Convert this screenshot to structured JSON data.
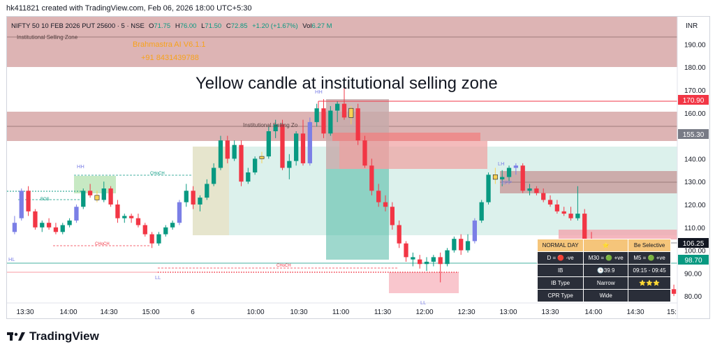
{
  "header": {
    "caption": "hk411821 created with TradingView.com, Feb 06, 2026 18:00 UTC+5:30"
  },
  "symbol_bar": {
    "symbol": "NIFTY 50 10 FEB 2026 PUT 25600 · 5 · NSE",
    "o_label": "O",
    "o_value": "71.75",
    "h_label": "H",
    "h_value": "76.00",
    "l_label": "L",
    "l_value": "71.50",
    "c_label": "C",
    "c_value": "72.85",
    "change": "+1.20 (+1.67%)",
    "vol_label": "Vol",
    "vol_value": "6.27 M",
    "currency": "INR"
  },
  "overlay": {
    "zone_label_top": "Institutional Selling Zone",
    "zone_label_mid": "Institutional Selling Zo",
    "brand": "Brahmastra AI V6.1.1",
    "phone": "+91 8431439788",
    "annotation": "Yellow candle at institutional selling zone",
    "labels": {
      "hh1": "HH",
      "hh2": "HH",
      "hl": "HL",
      "ll": "LL",
      "lh": "LH",
      "ll2": "LL",
      "bos": "BOS",
      "choch1": "CHoCH",
      "choch2": "CHoCH",
      "choch3": "CHoCH",
      "epp": "EPP"
    }
  },
  "price_badges": {
    "p1": {
      "text": "170.90",
      "color": "#f23645"
    },
    "p2": {
      "text": "155.30",
      "color": "#787b86"
    },
    "p3": {
      "text": "106.25",
      "color": "#131722"
    },
    "p4": {
      "text": "98.70",
      "color": "#089981"
    }
  },
  "dashboard": {
    "row1": {
      "a": "NORMAL DAY",
      "b": "⭐",
      "c": "Be Selective"
    },
    "row2": {
      "a": "D = 🔴 -ve",
      "b": "M30 = 🟢 +ve",
      "c": "M5 = 🟢 +ve"
    },
    "row3": {
      "a": "IB",
      "b": "🕓39.9",
      "c": "09:15 - 09:45"
    },
    "row4": {
      "a": "IB Type",
      "b": "Narrow",
      "c": "⭐⭐⭐"
    },
    "row5": {
      "a": "CPR Type",
      "b": "Wide",
      "c": ""
    }
  },
  "footer": {
    "brand": "TradingView"
  },
  "colors": {
    "up": "#089981",
    "down": "#f23645",
    "yellow": "#f7d154",
    "blue": "#7b7fe6",
    "zone": "#d7a7a7"
  },
  "chart_data": {
    "type": "candlestick",
    "x_ticks": [
      "13:30",
      "14:00",
      "14:30",
      "15:00",
      "6",
      "10:00",
      "10:30",
      "11:00",
      "11:30",
      "12:00",
      "12:30",
      "13:00",
      "13:30",
      "14:00",
      "14:30",
      "15:"
    ],
    "y_ticks": [
      80,
      90,
      100,
      110,
      120,
      130,
      140,
      150,
      160,
      170,
      180,
      190
    ],
    "ylim": [
      77,
      202
    ],
    "candles": [
      [
        112,
        115,
        107,
        108,
        "b"
      ],
      [
        114,
        127,
        113,
        126,
        "b"
      ],
      [
        126,
        128,
        115,
        117,
        "d"
      ],
      [
        117,
        118,
        109,
        110,
        "d"
      ],
      [
        110,
        113,
        108,
        112,
        "u"
      ],
      [
        112,
        114,
        109,
        110,
        "d"
      ],
      [
        110,
        112,
        107,
        108,
        "d"
      ],
      [
        108,
        112,
        107,
        111,
        "u"
      ],
      [
        111,
        114,
        110,
        113,
        "u"
      ],
      [
        113,
        120,
        112,
        119,
        "b"
      ],
      [
        119,
        127,
        118,
        126,
        "u"
      ],
      [
        126,
        129,
        123,
        124,
        "d"
      ],
      [
        124,
        126,
        121,
        122,
        "y"
      ],
      [
        122,
        130,
        121,
        127,
        "u"
      ],
      [
        127,
        128,
        119,
        120,
        "d"
      ],
      [
        120,
        122,
        112,
        114,
        "d"
      ],
      [
        114,
        116,
        112,
        115,
        "u"
      ],
      [
        115,
        116,
        112,
        114,
        "d"
      ],
      [
        114,
        116,
        110,
        111,
        "d"
      ],
      [
        111,
        112,
        106,
        107,
        "d"
      ],
      [
        107,
        108,
        101,
        103,
        "d"
      ],
      [
        103,
        108,
        102,
        107,
        "u"
      ],
      [
        107,
        111,
        106,
        110,
        "u"
      ],
      [
        110,
        113,
        109,
        112,
        "u"
      ],
      [
        112,
        122,
        111,
        121,
        "b"
      ],
      [
        121,
        129,
        119,
        126,
        "u"
      ],
      [
        126,
        128,
        118,
        120,
        "d"
      ],
      [
        120,
        124,
        117,
        123,
        "u"
      ],
      [
        123,
        131,
        122,
        129,
        "u"
      ],
      [
        129,
        138,
        128,
        136,
        "u"
      ],
      [
        136,
        150,
        135,
        148,
        "u"
      ],
      [
        148,
        150,
        138,
        140,
        "d"
      ],
      [
        140,
        148,
        139,
        146,
        "u"
      ],
      [
        146,
        148,
        128,
        130,
        "d"
      ],
      [
        130,
        136,
        129,
        134,
        "u"
      ],
      [
        134,
        141,
        133,
        140,
        "u"
      ],
      [
        140,
        143,
        138,
        141,
        "y"
      ],
      [
        141,
        154,
        140,
        152,
        "u"
      ],
      [
        152,
        157,
        149,
        155,
        "u"
      ],
      [
        155,
        157,
        135,
        136,
        "d"
      ],
      [
        136,
        142,
        131,
        139,
        "u"
      ],
      [
        139,
        152,
        137,
        151,
        "u"
      ],
      [
        151,
        157,
        137,
        138,
        "d"
      ],
      [
        138,
        158,
        137,
        156,
        "b"
      ],
      [
        156,
        164,
        154,
        162,
        "u"
      ],
      [
        162,
        166,
        149,
        151,
        "d"
      ],
      [
        151,
        163,
        150,
        161,
        "u"
      ],
      [
        161,
        165,
        156,
        164,
        "u"
      ],
      [
        164,
        172,
        157,
        158,
        "d"
      ],
      [
        158,
        163,
        155,
        162,
        "y"
      ],
      [
        162,
        164,
        146,
        148,
        "d"
      ],
      [
        148,
        150,
        136,
        137,
        "d"
      ],
      [
        137,
        140,
        124,
        126,
        "d"
      ],
      [
        126,
        129,
        119,
        121,
        "d"
      ],
      [
        121,
        124,
        117,
        119,
        "d"
      ],
      [
        119,
        121,
        109,
        111,
        "d"
      ],
      [
        111,
        113,
        101,
        103,
        "d"
      ],
      [
        103,
        104,
        95,
        97,
        "d"
      ],
      [
        97,
        99,
        93,
        96,
        "u"
      ],
      [
        96,
        98,
        92,
        94,
        "d"
      ],
      [
        94,
        97,
        91,
        95,
        "u"
      ],
      [
        95,
        98,
        93,
        97,
        "u"
      ],
      [
        97,
        99,
        86,
        94,
        "d"
      ],
      [
        94,
        101,
        93,
        100,
        "u"
      ],
      [
        100,
        106,
        99,
        105,
        "u"
      ],
      [
        105,
        107,
        98,
        100,
        "d"
      ],
      [
        100,
        107,
        99,
        104,
        "u"
      ],
      [
        104,
        114,
        103,
        113,
        "b"
      ],
      [
        113,
        122,
        112,
        121,
        "u"
      ],
      [
        121,
        134,
        120,
        133,
        "u"
      ],
      [
        133,
        136,
        129,
        131,
        "y"
      ],
      [
        131,
        135,
        128,
        132,
        "u"
      ],
      [
        132,
        137,
        130,
        136,
        "u"
      ],
      [
        136,
        138,
        133,
        137,
        "b"
      ],
      [
        137,
        138,
        125,
        126,
        "d"
      ],
      [
        126,
        129,
        124,
        127,
        "u"
      ],
      [
        127,
        128,
        124,
        125,
        "d"
      ],
      [
        125,
        127,
        121,
        122,
        "d"
      ],
      [
        122,
        124,
        119,
        120,
        "d"
      ],
      [
        120,
        122,
        116,
        117,
        "d"
      ],
      [
        117,
        119,
        115,
        116,
        "d"
      ],
      [
        116,
        119,
        113,
        114,
        "d"
      ],
      [
        114,
        128,
        113,
        116,
        "u"
      ],
      [
        116,
        118,
        103,
        105,
        "d"
      ],
      [
        105,
        108,
        101,
        102,
        "d"
      ],
      [
        102,
        104,
        89,
        91,
        "d"
      ],
      [
        91,
        93,
        88,
        90,
        "d"
      ],
      [
        90,
        95,
        89,
        94,
        "u"
      ],
      [
        94,
        96,
        90,
        92,
        "d"
      ],
      [
        92,
        94,
        88,
        90,
        "d"
      ],
      [
        90,
        93,
        87,
        91,
        "u"
      ],
      [
        91,
        95,
        88,
        89,
        "d"
      ],
      [
        89,
        92,
        86,
        88,
        "d"
      ],
      [
        88,
        91,
        83,
        84,
        "d"
      ],
      [
        84,
        86,
        80,
        81,
        "d"
      ],
      [
        81,
        84,
        79,
        83,
        "u"
      ],
      [
        83,
        85,
        80,
        81,
        "d"
      ]
    ]
  }
}
